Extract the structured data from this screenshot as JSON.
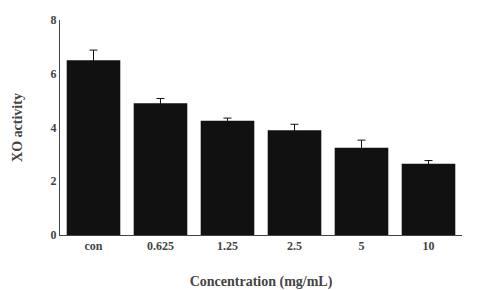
{
  "chart_data": {
    "type": "bar",
    "categories": [
      "con",
      "0.625",
      "1.25",
      "2.5",
      "5",
      "10"
    ],
    "values": [
      6.5,
      4.9,
      4.25,
      3.9,
      3.25,
      2.65
    ],
    "errors": [
      0.38,
      0.18,
      0.1,
      0.22,
      0.28,
      0.12
    ],
    "color": "#111111",
    "xlabel": "Concentration (mg/mL)",
    "ylabel": "XO activity",
    "ylim": [
      0,
      8
    ],
    "yticks": [
      0,
      2,
      4,
      6,
      8
    ],
    "grid": false
  }
}
